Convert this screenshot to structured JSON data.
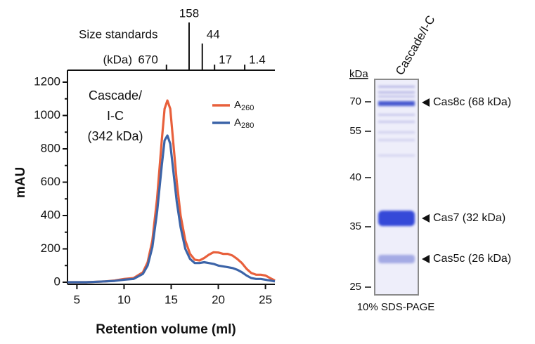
{
  "chart_data": {
    "type": "line",
    "xlabel": "Retention volume (ml)",
    "ylabel": "mAU",
    "annotation": [
      "Cascade/",
      "I-C",
      "(342 kDa)"
    ],
    "xlim": [
      4,
      26
    ],
    "xticks": [
      5,
      10,
      15,
      20,
      25
    ],
    "ylim": [
      0,
      1200
    ],
    "yticks": [
      0,
      200,
      400,
      600,
      800,
      1000,
      1200
    ],
    "x": [
      4,
      6,
      8,
      9,
      10,
      11,
      12,
      12.5,
      13,
      13.5,
      14,
      14.3,
      14.6,
      14.9,
      15.2,
      15.6,
      16,
      16.5,
      17,
      17.5,
      18,
      18.5,
      19,
      19.5,
      20,
      20.5,
      21,
      21.5,
      22,
      22.5,
      23,
      23.5,
      24,
      24.5,
      25,
      25.5,
      26
    ],
    "series": [
      {
        "name": "A260",
        "color": "#e8603c",
        "values": [
          0,
          0,
          5,
          10,
          20,
          25,
          60,
          120,
          250,
          500,
          850,
          1040,
          1090,
          1040,
          850,
          600,
          400,
          250,
          170,
          135,
          130,
          145,
          165,
          180,
          178,
          170,
          170,
          160,
          140,
          115,
          80,
          55,
          45,
          45,
          40,
          25,
          10
        ]
      },
      {
        "name": "A280",
        "color": "#3c64a8",
        "values": [
          0,
          0,
          5,
          8,
          15,
          20,
          50,
          100,
          210,
          420,
          700,
          850,
          880,
          830,
          680,
          480,
          330,
          200,
          140,
          115,
          115,
          120,
          115,
          110,
          100,
          95,
          90,
          85,
          75,
          60,
          40,
          25,
          20,
          20,
          15,
          10,
          5
        ]
      }
    ],
    "size_standards": {
      "title": "Size standards",
      "unit": "(kDa)",
      "labels": [
        "670",
        "158",
        "44",
        "17",
        "1.4"
      ],
      "x": [
        14.5,
        16.9,
        18.3,
        19.6,
        22.8
      ]
    }
  },
  "gel": {
    "lane_label": "Cascade/I-C",
    "ladder_title": "kDa",
    "ladder": [
      70,
      55,
      40,
      35,
      25
    ],
    "bands": [
      "Cas8c (68 kDa)",
      "Cas7 (32 kDa)",
      "Cas5c (26 kDa)"
    ],
    "caption": "10% SDS-PAGE"
  }
}
